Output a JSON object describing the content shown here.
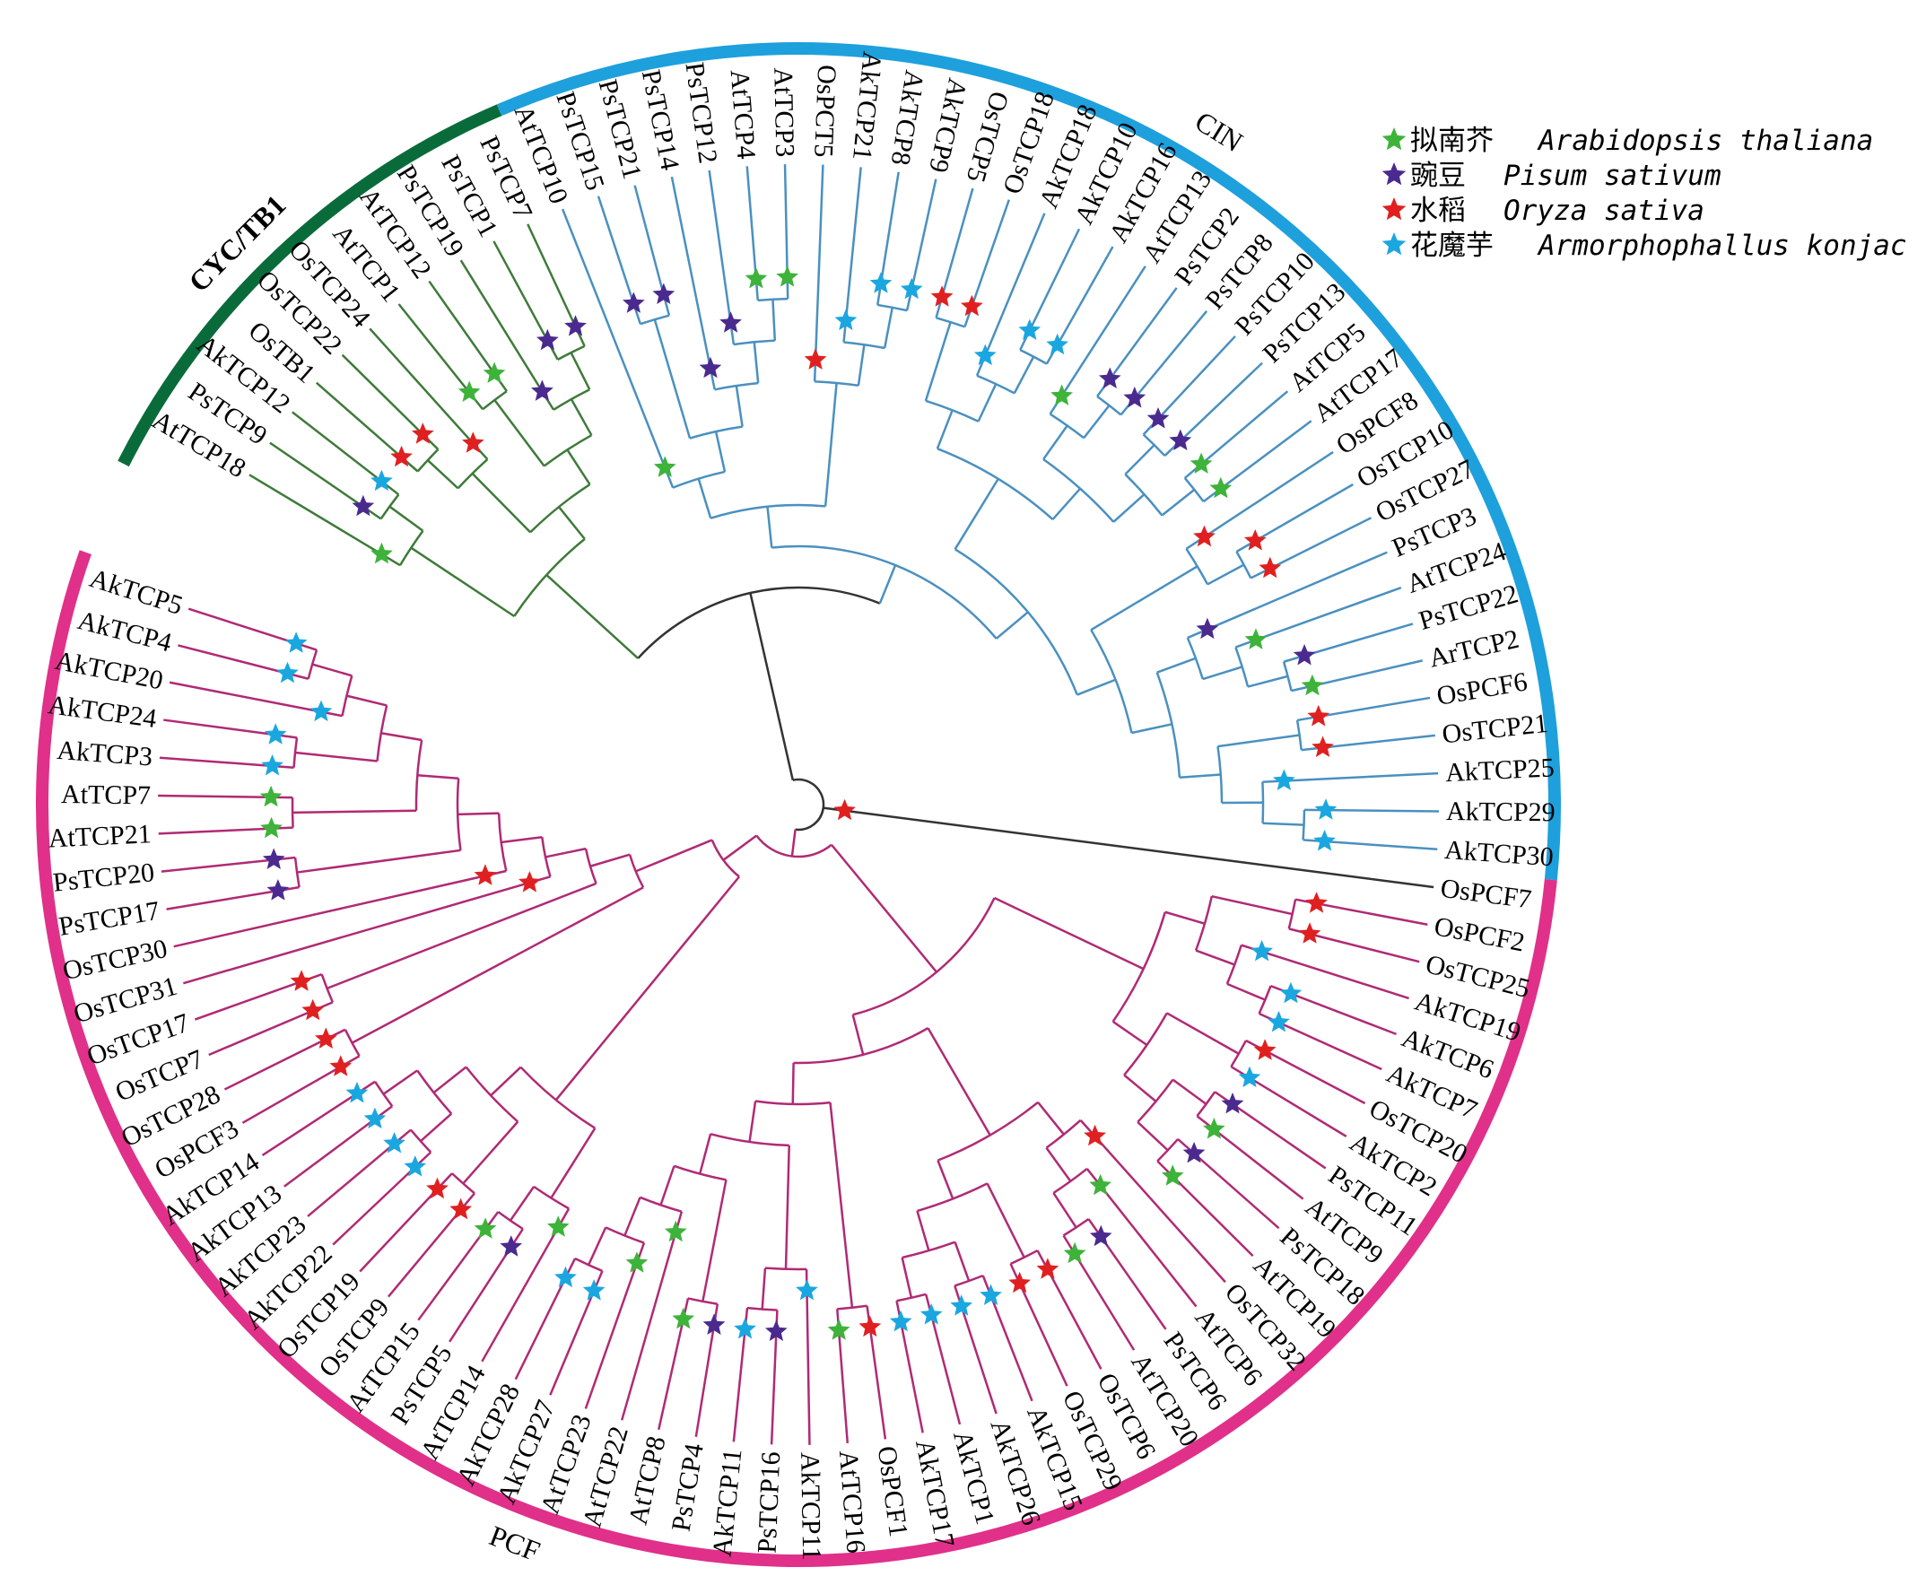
{
  "legend": [
    {
      "star_color": "#3db33a",
      "cn": "拟南芥",
      "latin": "Arabidopsis thaliana"
    },
    {
      "star_color": "#4b2a8f",
      "cn": "豌豆",
      "latin": "Pisum sativum"
    },
    {
      "star_color": "#e02020",
      "cn": "水稻",
      "latin": "Oryza sativa"
    },
    {
      "star_color": "#1aa7e0",
      "cn": "花魔芋",
      "latin": "Armorphophallus konjac"
    }
  ],
  "clades": {
    "CYC/TB1": {
      "label": "CYC/TB1",
      "arc_color": "#0a6b3a",
      "branch_color": "#3f7a3a",
      "bold": true
    },
    "CIN": {
      "label": "CIN",
      "arc_color": "#1ea0dc",
      "branch_color": "#4a90c0",
      "bold": false
    },
    "PCF": {
      "label": "PCF",
      "arc_color": "#e0308a",
      "branch_color": "#b02a74",
      "bold": false
    }
  },
  "backbone_color": "#333333",
  "tree": [
    [
      {
        "clade": "CYC/TB1",
        "children": [
          [
            "AtTCP18",
            [
              "PsTCP9",
              "AkTCP12"
            ]
          ],
          [
            [
              [
                "OsTB1",
                "OsTCP22"
              ],
              "OsTCP24"
            ],
            [
              [
                "AtTCP1",
                "AtTCP12"
              ],
              [
                "PsTCP19",
                [
                  "PsTCP1",
                  "PsTCP7"
                ]
              ]
            ]
          ]
        ]
      },
      {
        "clade": "CIN",
        "children": [
          [
            [
              "AtTCP10",
              [
                [
                  "PsTCP15",
                  "PsTCP21"
                ],
                [
                  "PsTCP14",
                  [
                    "PsTCP12",
                    [
                      "AtTCP4",
                      "AtTCP3"
                    ]
                  ]
                ]
              ]
            ],
            [
              "OsPCT5",
              [
                "AkTCP21",
                [
                  "AkTCP8",
                  "AkTCP9"
                ]
              ]
            ]
          ],
          [
            [
              [
                [
                  "OsTCP5",
                  "OsTCP18"
                ],
                [
                  "AkTCP18",
                  [
                    "AkTCP10",
                    "AkTCP16"
                  ]
                ]
              ],
              [
                [
                  "AtTCP13",
                  [
                    "PsTCP2",
                    "PsTCP8"
                  ]
                ],
                [
                  [
                    "PsTCP10",
                    "PsTCP13"
                  ],
                  [
                    "AtTCP5",
                    "AtTCP17"
                  ]
                ]
              ]
            ],
            [
              [
                "OsPCF8",
                [
                  "OsTCP10",
                  "OsTCP27"
                ]
              ],
              [
                [
                  "PsTCP3",
                  [
                    "AtTCP24",
                    [
                      "PsTCP22",
                      "ArTCP2"
                    ]
                  ]
                ],
                [
                  [
                    "OsPCF6",
                    "OsTCP21"
                  ],
                  [
                    "AkTCP25",
                    [
                      "AkTCP29",
                      "AkTCP30"
                    ]
                  ]
                ]
              ]
            ]
          ]
        ]
      }
    ],
    [
      "OsPCF7",
      {
        "clade": "PCF",
        "children": [
          [
            [
              [
                [
                  "OsPCF2",
                  "OsTCP25"
                ],
                [
                  "AkTCP19",
                  [
                    "AkTCP6",
                    "AkTCP7"
                  ]
                ]
              ],
              [
                [
                  "OsTCP20",
                  "AkTCP2"
                ],
                [
                  [
                    "PsTCP11",
                    "AtTCP9"
                  ],
                  [
                    "PsTCP18",
                    "AtTCP19"
                  ]
                ]
              ]
            ],
            [
              [
                [
                  "OsTCP32",
                  [
                    "AtTCP6",
                    [
                      "PsTCP6",
                      "AtTCP20"
                    ]
                  ]
                ],
                [
                  [
                    "OsTCP6",
                    "OsTCP29"
                  ],
                  [
                    [
                      "AkTCP15",
                      "AkTCP26"
                    ],
                    [
                      "AkTCP1",
                      "AkTCP17"
                    ]
                  ]
                ]
              ],
              [
                [
                  "OsPCF1",
                  "AtTCP16"
                ],
                [
                  [
                    "AkTCP11",
                    [
                      "PsTCP16",
                      "AkTCP11"
                    ]
                  ],
                  [
                    [
                      "PsTCP4",
                      "AtTCP8"
                    ],
                    [
                      "AtTCP22",
                      [
                        "AtTCP23",
                        [
                          "AkTCP27",
                          "AkTCP28"
                        ]
                      ]
                    ]
                  ]
                ]
              ]
            ]
          ],
          [
            [
              [
                "AtTCP14",
                [
                  "PsTCP5",
                  "AtTCP15"
                ]
              ],
              [
                [
                  "OsTCP9",
                  "OsTCP19"
                ],
                [
                  [
                    "AkTCP22",
                    "AkTCP23"
                  ],
                  [
                    "AkTCP13",
                    "AkTCP14"
                  ]
                ]
              ]
            ],
            [
              [
                [
                  "OsPCF3",
                  "OsTCP28"
                ],
                [
                  [
                    "OsTCP7",
                    "OsTCP17"
                  ],
                  [
                    "OsTCP31",
                    [
                      "OsTCP30",
                      [
                        [
                          "PsTCP17",
                          "PsTCP20"
                        ],
                        [
                          [
                            "AtTCP21",
                            "AtTCP7"
                          ],
                          [
                            [
                              "AkTCP3",
                              "AkTCP24"
                            ],
                            [
                              "AkTCP20",
                              [
                                "AkTCP4",
                                "AkTCP5"
                              ]
                            ]
                          ]
                        ]
                      ]
                    ]
                  ]
                ]
              ]
            ]
          ]
        ]
      }
    ]
  ]
}
